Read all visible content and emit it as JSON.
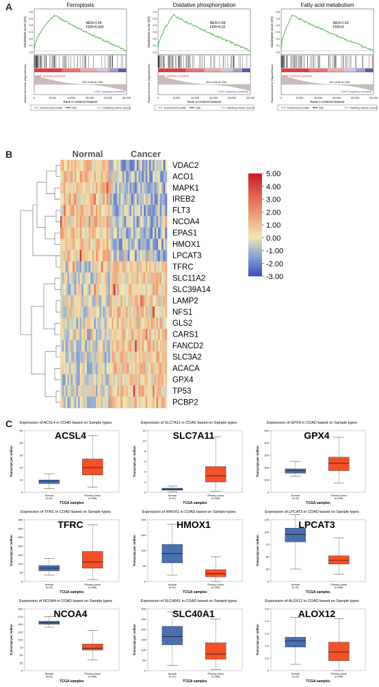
{
  "panels": {
    "a": "A",
    "b": "B",
    "c": "C"
  },
  "gsea": {
    "ylabel_top": "Enrichment score (ES)",
    "ylabel_bottom": "Ranked list metric (Signal2Noise)",
    "xlabel": "Rank in Ordered Dataset",
    "x_ticks": [
      "0",
      "5,000",
      "10,000",
      "15,000",
      "20,000",
      "25,000"
    ],
    "legend": [
      "Enrichment profile",
      "Hits",
      "Ranking metric scores"
    ],
    "pos_label": "'NMP' (positively correlated)",
    "neg_label": "'COAP' (negatively correlated)",
    "plots": [
      {
        "title": "Ferroptosis",
        "nes": "NES=1.64",
        "fdr": "FDR=0.004",
        "zero_cross": "Zero cross at 1786",
        "peak_x": 0.22,
        "es_ticks": [
          "0.6",
          "0.5",
          "0.4",
          "0.3",
          "0.2",
          "0.1",
          "0.0"
        ]
      },
      {
        "title": "Oxidative phosphorylation",
        "nes": "NES=1.84",
        "fdr": "FDR=0.02",
        "zero_cross": "Zero cross at 1786",
        "peak_x": 0.17,
        "es_ticks": [
          "0.6",
          "0.5",
          "0.4",
          "0.3",
          "0.2",
          "0.1",
          "0.0"
        ]
      },
      {
        "title": "Fatty acid metabolism",
        "nes": "NES=1.63",
        "fdr": "FDR=0",
        "zero_cross": "Zero cross at 1786",
        "peak_x": 0.12,
        "es_ticks": [
          "0.6",
          "0.5",
          "0.4",
          "0.3",
          "0.2",
          "0.1",
          "0.0"
        ]
      }
    ]
  },
  "heatmap": {
    "group_labels": [
      "Normal",
      "Cancer"
    ],
    "genes": [
      "VDAC2",
      "ACO1",
      "MAPK1",
      "IREB2",
      "FLT3",
      "NCOA4",
      "EPAS1",
      "HMOX1",
      "LPCAT3",
      "TFRC",
      "SLC11A2",
      "SLC39A14",
      "LAMP2",
      "NFS1",
      "GLS2",
      "CARS1",
      "FANCD2",
      "SLC3A2",
      "ACACA",
      "GPX4",
      "TP53",
      "PCBP2"
    ],
    "colorbar_ticks": [
      "5.00",
      "4.00",
      "3.00",
      "2.00",
      "1.00",
      "0.00",
      "-1.00",
      "-2.00",
      "-3.00"
    ],
    "colorbar_range": [
      -3,
      5
    ]
  },
  "boxplots": {
    "xlabel": "TCGA samples",
    "ylabel": "Transcript per million",
    "normal_label": "Normal",
    "normal_n": "(n=41)",
    "tumor_label": "Primary tumor",
    "tumor_n": "(n=286)",
    "colors": {
      "normal": "#4a6fb0",
      "tumor": "#f4502a"
    }
  },
  "chart_data": [
    {
      "type": "box",
      "title": "Expression of ACSL4 in COAD based on Sample types",
      "gene": "ACSL4",
      "ylim": [
        0,
        50
      ],
      "yticks": [
        "0",
        "10",
        "20",
        "30",
        "40",
        "50"
      ],
      "normal": {
        "min": 3,
        "q1": 7,
        "median": 9,
        "q3": 10,
        "max": 15
      },
      "tumor": {
        "min": 4,
        "q1": 14,
        "median": 20,
        "q3": 27,
        "max": 46
      }
    },
    {
      "type": "box",
      "title": "Expression of SLC7A11 in COAD based on Sample types",
      "gene": "SLC7A11",
      "ylim": [
        0,
        12
      ],
      "yticks": [
        "0",
        "2",
        "4",
        "6",
        "8",
        "10",
        "12"
      ],
      "normal": {
        "min": 0.1,
        "q1": 0.4,
        "median": 0.6,
        "q3": 0.8,
        "max": 1.2
      },
      "tumor": {
        "min": 0.2,
        "q1": 2.0,
        "median": 3.2,
        "q3": 5.0,
        "max": 10.8
      }
    },
    {
      "type": "box",
      "title": "Expression of GPX4 in COAD based on Sample types",
      "gene": "GPX4",
      "ylim": [
        0,
        500
      ],
      "yticks": [
        "0",
        "100",
        "200",
        "300",
        "400",
        "500"
      ],
      "normal": {
        "min": 130,
        "q1": 155,
        "median": 175,
        "q3": 190,
        "max": 250
      },
      "tumor": {
        "min": 75,
        "q1": 175,
        "median": 235,
        "q3": 285,
        "max": 445
      }
    },
    {
      "type": "box",
      "title": "Expression of TFRC in COAD based on Sample types",
      "gene": "TFRC",
      "ylim": [
        0,
        350
      ],
      "yticks": [
        "0",
        "50",
        "100",
        "150",
        "200",
        "250",
        "300",
        "350"
      ],
      "normal": {
        "min": 35,
        "q1": 60,
        "median": 75,
        "q3": 90,
        "max": 130
      },
      "tumor": {
        "min": 10,
        "q1": 75,
        "median": 110,
        "q3": 170,
        "max": 320
      }
    },
    {
      "type": "box",
      "title": "Expression of HMOX1 in COAD based on Sample types",
      "gene": "HMOX1",
      "ylim": [
        0,
        200
      ],
      "yticks": [
        "0",
        "50",
        "100",
        "150",
        "200"
      ],
      "normal": {
        "min": 20,
        "q1": 60,
        "median": 90,
        "q3": 120,
        "max": 185
      },
      "tumor": {
        "min": 0,
        "q1": 15,
        "median": 25,
        "q3": 38,
        "max": 80
      }
    },
    {
      "type": "box",
      "title": "Expression of LPCAT3 in COAD based on Sample types",
      "gene": "LPCAT3",
      "ylim": [
        0,
        125
      ],
      "yticks": [
        "0",
        "25",
        "50",
        "75",
        "100",
        "125"
      ],
      "normal": {
        "min": 25,
        "q1": 80,
        "median": 95,
        "q3": 108,
        "max": 135
      },
      "tumor": {
        "min": 15,
        "q1": 35,
        "median": 43,
        "q3": 52,
        "max": 88
      }
    },
    {
      "type": "box",
      "title": "Expression of NCOA4 in COAD based on Sample types",
      "gene": "NCOA4",
      "ylim": [
        0,
        200
      ],
      "yticks": [
        "0",
        "25",
        "50",
        "75",
        "100",
        "125",
        "150",
        "175",
        "200"
      ],
      "normal": {
        "min": 140,
        "q1": 150,
        "median": 155,
        "q3": 160,
        "max": 175
      },
      "tumor": {
        "min": 35,
        "q1": 66,
        "median": 72,
        "q3": 86,
        "max": 130
      }
    },
    {
      "type": "box",
      "title": "Expression of SLC40A1 in COAD based on Sample types",
      "gene": "SLC40A1",
      "ylim": [
        0,
        300
      ],
      "yticks": [
        "0",
        "50",
        "100",
        "150",
        "200",
        "250",
        "300"
      ],
      "normal": {
        "min": 25,
        "q1": 125,
        "median": 165,
        "q3": 215,
        "max": 285
      },
      "tumor": {
        "min": 5,
        "q1": 55,
        "median": 80,
        "q3": 135,
        "max": 250
      }
    },
    {
      "type": "box",
      "title": "Expression of ALOX12 in COAD based on Sample types",
      "gene": "ALOX12",
      "ylim": [
        0,
        0.5
      ],
      "yticks": [
        "0",
        "0.1",
        "0.2",
        "0.3",
        "0.4",
        "0.5"
      ],
      "normal": {
        "min": 0.05,
        "q1": 0.19,
        "median": 0.24,
        "q3": 0.27,
        "max": 0.43
      },
      "tumor": {
        "min": 0.0,
        "q1": 0.08,
        "median": 0.15,
        "q3": 0.23,
        "max": 0.42
      }
    }
  ]
}
